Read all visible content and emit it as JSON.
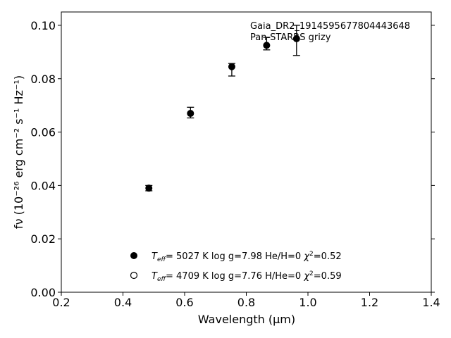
{
  "chart_data": {
    "type": "scatter",
    "xlabel": "Wavelength (μm)",
    "ylabel": "fν (10⁻²⁶ erg cm⁻² s⁻¹ Hz⁻¹)",
    "xlim": [
      0.2,
      1.4
    ],
    "ylim": [
      0.0,
      0.105
    ],
    "xticks": [
      "0.2",
      "0.4",
      "0.6",
      "0.8",
      "1.0",
      "1.2",
      "1.4"
    ],
    "yticks": [
      "0.00",
      "0.02",
      "0.04",
      "0.06",
      "0.08",
      "0.10"
    ],
    "annotations": [
      "Gaia_DR2_1914595677804443648",
      "Pan-STARRS grizy"
    ],
    "series": [
      {
        "marker": "filled-circle",
        "x": [
          0.484,
          0.619,
          0.753,
          0.866,
          0.963
        ],
        "y": [
          0.039,
          0.067,
          0.0845,
          0.0925,
          0.095
        ],
        "yerr_low": [
          0.001,
          0.0017,
          0.0035,
          0.0017,
          0.0063
        ],
        "yerr_high": [
          0.001,
          0.0023,
          0.0012,
          0.003,
          0.005
        ]
      }
    ],
    "legend": {
      "placement": "lower-center",
      "entries": [
        {
          "marker": "filled",
          "teff_value": "5027 K",
          "params": "log g=7.98  He/H=0",
          "chi2": "0.52"
        },
        {
          "marker": "open",
          "teff_value": "4709 K",
          "params": "log g=7.76  H/He=0",
          "chi2": "0.59"
        }
      ]
    }
  }
}
